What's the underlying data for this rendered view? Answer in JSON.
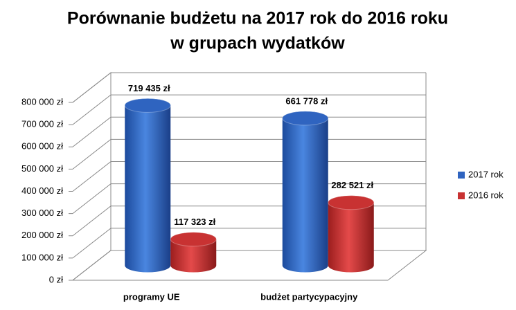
{
  "chart_data": {
    "type": "bar3d",
    "title": [
      "Porównanie budżetu na 2017 rok do 2016 roku",
      "w grupach wydatków"
    ],
    "categories": [
      "programy UE",
      "budżet partycypacyjny"
    ],
    "series": [
      {
        "name": "2017 rok",
        "color": "#2f64c0",
        "values": [
          719435,
          661778
        ],
        "value_labels": [
          "719 435 zł",
          "661 778 zł"
        ]
      },
      {
        "name": "2016 rok",
        "color": "#c83232",
        "values": [
          117323,
          282521
        ],
        "value_labels": [
          "117 323 zł",
          "282 521 zł"
        ]
      }
    ],
    "ylim": [
      0,
      800000
    ],
    "yticks": [
      {
        "value": 0,
        "label": "0 zł"
      },
      {
        "value": 100000,
        "label": "100 000 zł"
      },
      {
        "value": 200000,
        "label": "200 000 zł"
      },
      {
        "value": 300000,
        "label": "300 000 zł"
      },
      {
        "value": 400000,
        "label": "400 000 zł"
      },
      {
        "value": 500000,
        "label": "500 000 zł"
      },
      {
        "value": 600000,
        "label": "600 000 zł"
      },
      {
        "value": 700000,
        "label": "700 000 zł"
      },
      {
        "value": 800000,
        "label": "800 000 zł"
      }
    ],
    "grid": true,
    "legend": "right"
  }
}
